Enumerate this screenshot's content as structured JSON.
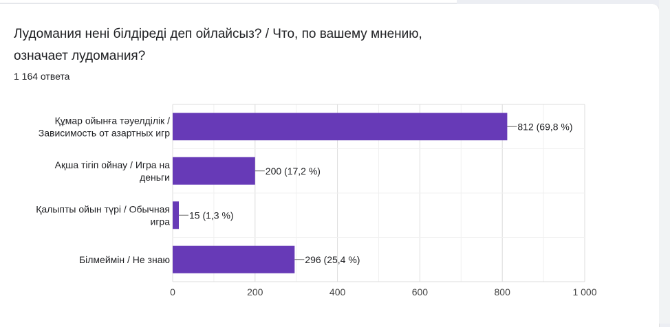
{
  "question": "Лудомания нені білдіреді деп ойлайсыз? / Что, по вашему мнению, означает лудомания?",
  "response_count": "1 164 ответа",
  "colors": {
    "bar": "#673ab7",
    "grid": "#e0e0e0",
    "text": "#202124",
    "axis_text": "#444444"
  },
  "chart_data": {
    "type": "bar",
    "orientation": "horizontal",
    "categories": [
      [
        "Құмар ойынға тәуелділік /",
        "Зависимость от азартных игр"
      ],
      [
        "Ақша тігіп ойнау / Игра на",
        "деньги"
      ],
      [
        "Қалыпты ойын түрі / Обычная",
        "игра"
      ],
      [
        "Білмеймін / Не знаю"
      ]
    ],
    "values": [
      812,
      200,
      15,
      296
    ],
    "data_labels": [
      "812 (69,8 %)",
      "200 (17,2 %)",
      "15 (1,3 %)",
      "296 (25,4 %)"
    ],
    "xlim": [
      0,
      1000
    ],
    "ticks": [
      0,
      200,
      400,
      600,
      800,
      1000
    ],
    "tick_labels": [
      "0",
      "200",
      "400",
      "600",
      "800",
      "1 000"
    ],
    "grid": true
  }
}
